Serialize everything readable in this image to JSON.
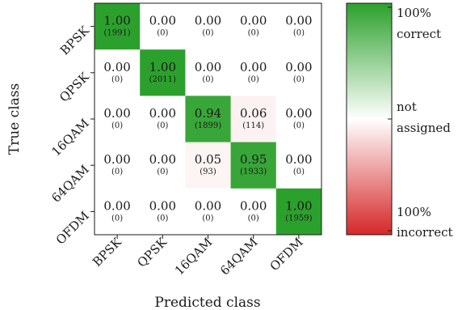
{
  "chart_data": {
    "type": "heatmap",
    "title": "",
    "xlabel": "Predicted class",
    "ylabel": "True class",
    "categories": [
      "BPSK",
      "QPSK",
      "16QAM",
      "64QAM",
      "OFDM"
    ],
    "fractions": [
      [
        "1.00",
        "0.00",
        "0.00",
        "0.00",
        "0.00"
      ],
      [
        "0.00",
        "1.00",
        "0.00",
        "0.00",
        "0.00"
      ],
      [
        "0.00",
        "0.00",
        "0.94",
        "0.06",
        "0.00"
      ],
      [
        "0.00",
        "0.00",
        "0.05",
        "0.95",
        "0.00"
      ],
      [
        "0.00",
        "0.00",
        "0.00",
        "0.00",
        "1.00"
      ]
    ],
    "counts": [
      [
        "(1991)",
        "(0)",
        "(0)",
        "(0)",
        "(0)"
      ],
      [
        "(0)",
        "(2011)",
        "(0)",
        "(0)",
        "(0)"
      ],
      [
        "(0)",
        "(0)",
        "(1899)",
        "(114)",
        "(0)"
      ],
      [
        "(0)",
        "(0)",
        "(93)",
        "(1933)",
        "(0)"
      ],
      [
        "(0)",
        "(0)",
        "(0)",
        "(0)",
        "(1959)"
      ]
    ],
    "colorbar": {
      "top_line1": "100%",
      "top_line2": "correct",
      "mid_line1": "not",
      "mid_line2": "assigned",
      "bottom_line1": "100%",
      "bottom_line2": "incorrect",
      "correct_color": "#2ca02c",
      "incorrect_color": "#d62728",
      "neutral_color": "#ffffff"
    }
  }
}
